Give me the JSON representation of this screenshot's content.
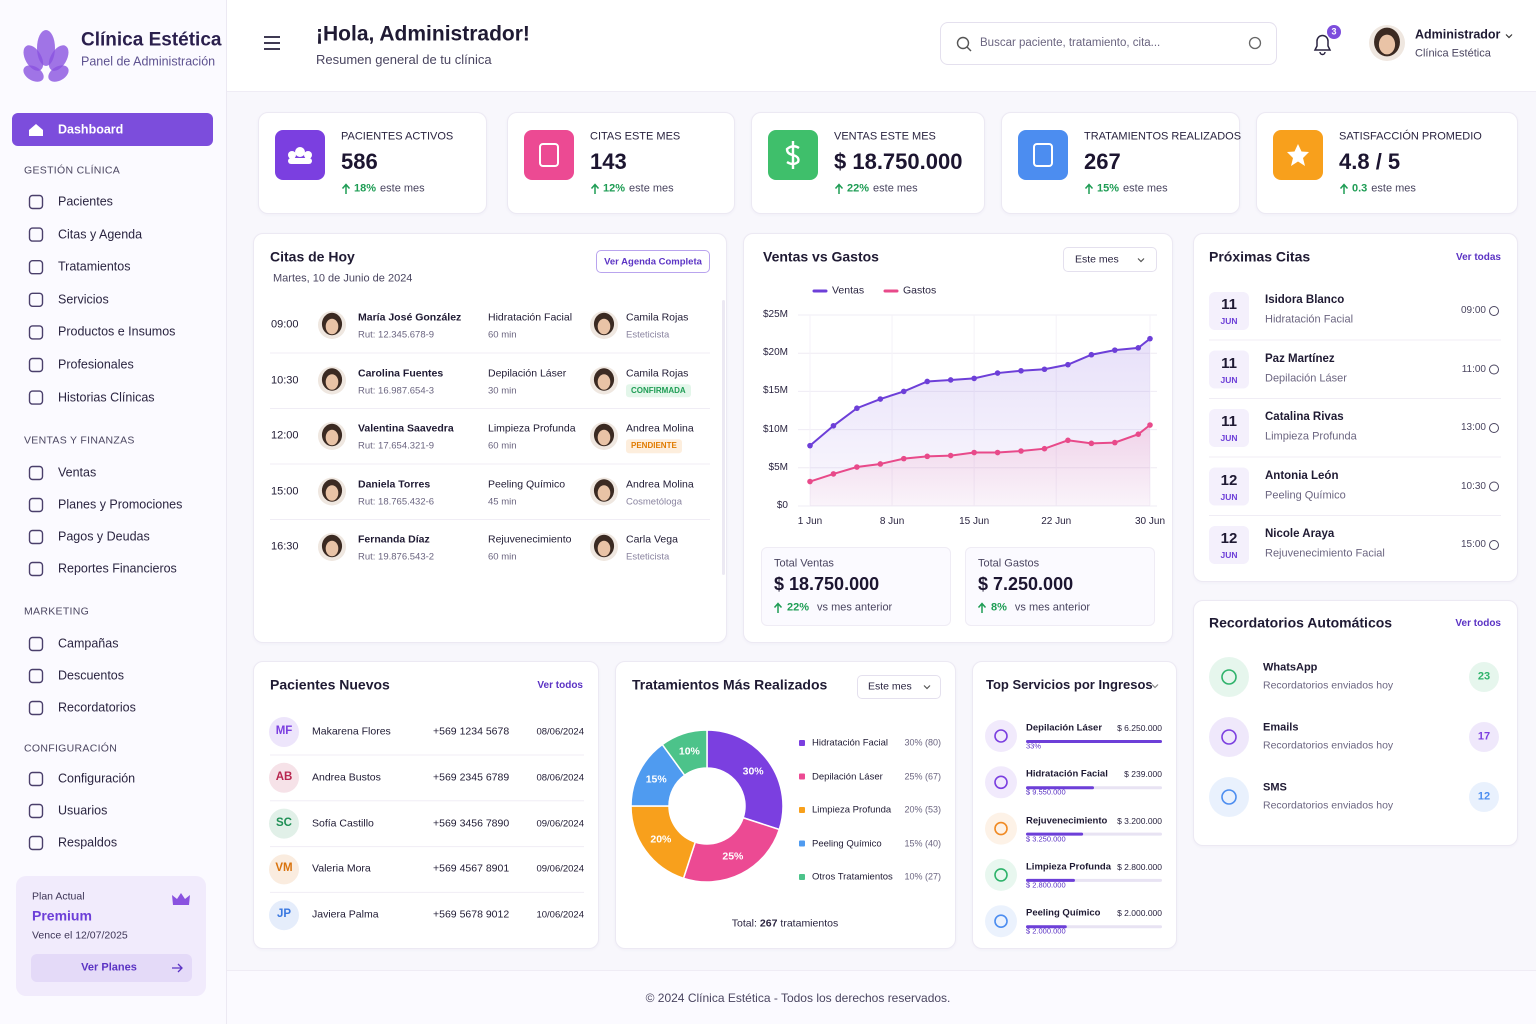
{
  "sidebar": {
    "brand": "Clínica Estética",
    "subtitle": "Panel de Administración",
    "active": "Dashboard",
    "groups": [
      {
        "title": "GESTIÓN CLÍNICA",
        "items": [
          "Pacientes",
          "Citas y Agenda",
          "Tratamientos",
          "Servicios",
          "Productos e Insumos",
          "Profesionales",
          "Historias Clínicas"
        ]
      },
      {
        "title": "VENTAS Y FINANZAS",
        "items": [
          "Ventas",
          "Planes y Promociones",
          "Pagos y Deudas",
          "Reportes Financieros"
        ]
      },
      {
        "title": "MARKETING",
        "items": [
          "Campañas",
          "Descuentos",
          "Recordatorios"
        ]
      },
      {
        "title": "CONFIGURACIÓN",
        "items": [
          "Configuración",
          "Usuarios",
          "Respaldos"
        ]
      }
    ],
    "plan": {
      "label": "Plan Actual",
      "name": "Premium",
      "expiry": "Vence el 12/07/2025",
      "button": "Ver Planes"
    }
  },
  "header": {
    "greeting": "¡Hola, Administrador!",
    "subtitle": "Resumen general de tu clínica",
    "search": "Buscar paciente, tratamiento, cita...",
    "notifications": "3",
    "user": "Administrador",
    "role": "Clínica Estética"
  },
  "kpis": [
    {
      "label": "PACIENTES ACTIVOS",
      "value": "586",
      "change": "18%",
      "period": "este mes",
      "color": "#7b3fe0"
    },
    {
      "label": "CITAS ESTE MES",
      "value": "143",
      "change": "12%",
      "period": "este mes",
      "color": "#ec4a93"
    },
    {
      "label": "VENTAS ESTE MES",
      "value": "$ 18.750.000",
      "change": "22%",
      "period": "este mes",
      "color": "#3fbf6b"
    },
    {
      "label": "TRATAMIENTOS REALIZADOS",
      "value": "267",
      "change": "15%",
      "period": "este mes",
      "color": "#4c8df0"
    },
    {
      "label": "SATISFACCIÓN PROMEDIO",
      "value": "4.8 / 5",
      "change": "0.3",
      "period": "este mes",
      "color": "#f8a01c"
    }
  ],
  "appointments_today": {
    "title": "Citas de Hoy",
    "date": "Martes, 10 de Junio de 2024",
    "button": "Ver Agenda Completa",
    "rows": [
      {
        "time": "09:00",
        "patient": "María José González",
        "rut": "Rut: 12.345.678-9",
        "treatment": "Hidratación Facial",
        "duration": "60 min",
        "professional": "Camila Rojas",
        "role": "Esteticista"
      },
      {
        "time": "10:30",
        "patient": "Carolina Fuentes",
        "rut": "Rut: 16.987.654-3",
        "treatment": "Depilación Láser",
        "duration": "30 min",
        "professional": "Camila Rojas",
        "role": "CONFIRMADA",
        "badge": {
          "bg": "#e3f6ea",
          "fg": "#1f9d55"
        }
      },
      {
        "time": "12:00",
        "patient": "Valentina Saavedra",
        "rut": "Rut: 17.654.321-9",
        "treatment": "Limpieza Profunda",
        "duration": "60 min",
        "professional": "Andrea Molina",
        "role": "PENDIENTE",
        "badge": {
          "bg": "#fdeedd",
          "fg": "#e07b00"
        }
      },
      {
        "time": "15:00",
        "patient": "Daniela Torres",
        "rut": "Rut: 18.765.432-6",
        "treatment": "Peeling Químico",
        "duration": "45 min",
        "professional": "Andrea Molina",
        "role": "Cosmetóloga"
      },
      {
        "time": "16:30",
        "patient": "Fernanda Díaz",
        "rut": "Rut: 19.876.543-2",
        "treatment": "Rejuvenecimiento",
        "duration": "60 min",
        "professional": "Carla Vega",
        "role": "Esteticista"
      }
    ]
  },
  "sales": {
    "dropdown": "Este mes",
    "totals": [
      {
        "label": "Total Ventas",
        "value": "$ 18.750.000",
        "change": "22%",
        "note": "vs mes anterior"
      },
      {
        "label": "Total Gastos",
        "value": "$ 7.250.000",
        "change": "8%",
        "note": "vs mes anterior"
      }
    ]
  },
  "upcoming": {
    "title": "Próximas Citas",
    "link": "Ver todas",
    "rows": [
      {
        "day": "11",
        "month": "JUN",
        "name": "Isidora Blanco",
        "treatment": "Hidratación Facial",
        "time": "09:00"
      },
      {
        "day": "11",
        "month": "JUN",
        "name": "Paz Martínez",
        "treatment": "Depilación Láser",
        "time": "11:00"
      },
      {
        "day": "11",
        "month": "JUN",
        "name": "Catalina Rivas",
        "treatment": "Limpieza Profunda",
        "time": "13:00"
      },
      {
        "day": "12",
        "month": "JUN",
        "name": "Antonia León",
        "treatment": "Peeling Químico",
        "time": "10:30"
      },
      {
        "day": "12",
        "month": "JUN",
        "name": "Nicole Araya",
        "treatment": "Rejuvenecimiento Facial",
        "time": "15:00"
      }
    ]
  },
  "reminders": {
    "title": "Recordatorios Automáticos",
    "link": "Ver todos",
    "rows": [
      {
        "channel": "WhatsApp",
        "desc": "Recordatorios enviados hoy",
        "count": "23",
        "color": "#2fb36b"
      },
      {
        "channel": "Emails",
        "desc": "Recordatorios enviados hoy",
        "count": "17",
        "color": "#7b3fe0"
      },
      {
        "channel": "SMS",
        "desc": "Recordatorios enviados hoy",
        "count": "12",
        "color": "#4c8df0"
      }
    ]
  },
  "new_patients": {
    "title": "Pacientes Nuevos",
    "link": "Ver todos",
    "rows": [
      {
        "initials": "MF",
        "name": "Makarena Flores",
        "phone": "+569 1234 5678",
        "date": "08/06/2024",
        "color": "#7b3fe0"
      },
      {
        "initials": "AB",
        "name": "Andrea Bustos",
        "phone": "+569 2345 6789",
        "date": "08/06/2024",
        "color": "#b8264f"
      },
      {
        "initials": "SC",
        "name": "Sofía Castillo",
        "phone": "+569 3456 7890",
        "date": "09/06/2024",
        "color": "#1f8f55"
      },
      {
        "initials": "VM",
        "name": "Valeria Mora",
        "phone": "+569 4567 8901",
        "date": "09/06/2024",
        "color": "#d9730d"
      },
      {
        "initials": "JP",
        "name": "Javiera Palma",
        "phone": "+569 5678 9012",
        "date": "10/06/2024",
        "color": "#3a78e0"
      }
    ]
  },
  "treatments": {
    "dropdown": "Este mes",
    "total_label": "Total:",
    "total": "267",
    "total_suffix": "tratamientos"
  },
  "top_services": {
    "title": "Top Servicios por Ingresos",
    "rows": [
      {
        "name": "Depilación Láser",
        "amount": "$ 6.250.000",
        "detail": "33%",
        "color": "#7b3fe0"
      },
      {
        "name": "Hidratación Facial",
        "amount": "$ 239.000",
        "detail": "$ 9.550.000",
        "color": "#7b3fe0"
      },
      {
        "name": "Rejuvenecimiento",
        "amount": "$ 3.200.000",
        "detail": "$ 3.250.000",
        "color": "#f08a24"
      },
      {
        "name": "Limpieza Profunda",
        "amount": "$ 2.800.000",
        "detail": "$ 2.800.000",
        "color": "#2fb36b"
      },
      {
        "name": "Peeling Químico",
        "amount": "$ 2.000.000",
        "detail": "$ 2.000.000",
        "color": "#4c8df0"
      }
    ]
  },
  "footer": "© 2024 Clínica Estética - Todos los derechos reservados.",
  "chart_data": [
    {
      "type": "line",
      "title": "Ventas vs Gastos",
      "x": [
        1,
        3,
        5,
        7,
        9,
        11,
        13,
        15,
        17,
        19,
        21,
        23,
        25,
        27,
        29,
        30
      ],
      "xlim": [
        1,
        30
      ],
      "xticks": [
        {
          "value": 1,
          "label": "1 Jun"
        },
        {
          "value": 8,
          "label": "8 Jun"
        },
        {
          "value": 15,
          "label": "15 Jun"
        },
        {
          "value": 22,
          "label": "22 Jun"
        },
        {
          "value": 30,
          "label": "30 Jun"
        }
      ],
      "ylim": [
        0,
        25
      ],
      "yticks": [
        {
          "value": 0,
          "label": "$0"
        },
        {
          "value": 5,
          "label": "$5M"
        },
        {
          "value": 10,
          "label": "$10M"
        },
        {
          "value": 15,
          "label": "$15M"
        },
        {
          "value": 20,
          "label": "$20M"
        },
        {
          "value": 25,
          "label": "$25M"
        }
      ],
      "grid": true,
      "series": [
        {
          "name": "Ventas",
          "color": "#6d3fd8",
          "values": [
            7.9,
            10.5,
            12.8,
            14,
            15,
            16.3,
            16.5,
            16.7,
            17.4,
            17.7,
            17.9,
            18.5,
            19.8,
            20.4,
            20.7,
            21.9
          ]
        },
        {
          "name": "Gastos",
          "color": "#e84a8a",
          "values": [
            3.2,
            4.2,
            5.1,
            5.5,
            6.2,
            6.5,
            6.6,
            7,
            7,
            7.2,
            7.5,
            8.6,
            8.2,
            8.3,
            9.4,
            10.6
          ]
        }
      ]
    },
    {
      "type": "pie",
      "title": "Tratamientos Más Realizados",
      "categories": [
        "Hidratación Facial",
        "Depilación Láser",
        "Limpieza Profunda",
        "Peeling Químico",
        "Otros Tratamientos"
      ],
      "values": [
        30,
        25,
        20,
        15,
        10
      ],
      "value_labels": [
        "30%",
        "25%",
        "20%",
        "15%",
        "10%"
      ],
      "legend_labels": [
        "30% (80)",
        "25% (67)",
        "20% (53)",
        "15% (40)",
        "10% (27)"
      ],
      "colors": [
        "#7b3fe0",
        "#ec4a93",
        "#f8a01c",
        "#4f9bf0",
        "#4cc38a"
      ]
    }
  ]
}
